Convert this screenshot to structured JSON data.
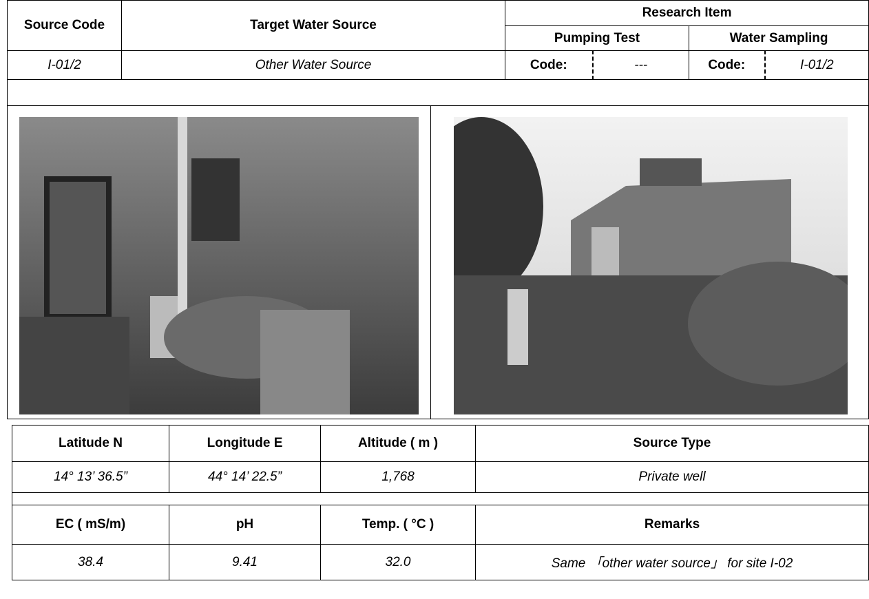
{
  "header": {
    "source_code": "Source Code",
    "target": "Target Water Source",
    "research_item": "Research Item",
    "pumping_test": "Pumping Test",
    "water_sampling": "Water Sampling"
  },
  "record": {
    "source_code": "I-01/2",
    "target": "Other Water Source",
    "pumping_code_label": "Code:",
    "pumping_code": "---",
    "sampling_code_label": "Code:",
    "sampling_code": "I-01/2"
  },
  "location": {
    "headers": [
      "Latitude N",
      "Longitude E",
      "Altitude ( m )",
      "Source Type"
    ],
    "values": [
      "14° 13’ 36.5”",
      "44° 14’ 22.5”",
      "1,768",
      "Private well"
    ]
  },
  "quality": {
    "headers": [
      "EC ( mS/m)",
      "pH",
      "Temp. ( °C )",
      "Remarks"
    ],
    "values": [
      "38.4",
      "9.41",
      "32.0",
      "Same 「other water source」 for site I-02"
    ]
  }
}
